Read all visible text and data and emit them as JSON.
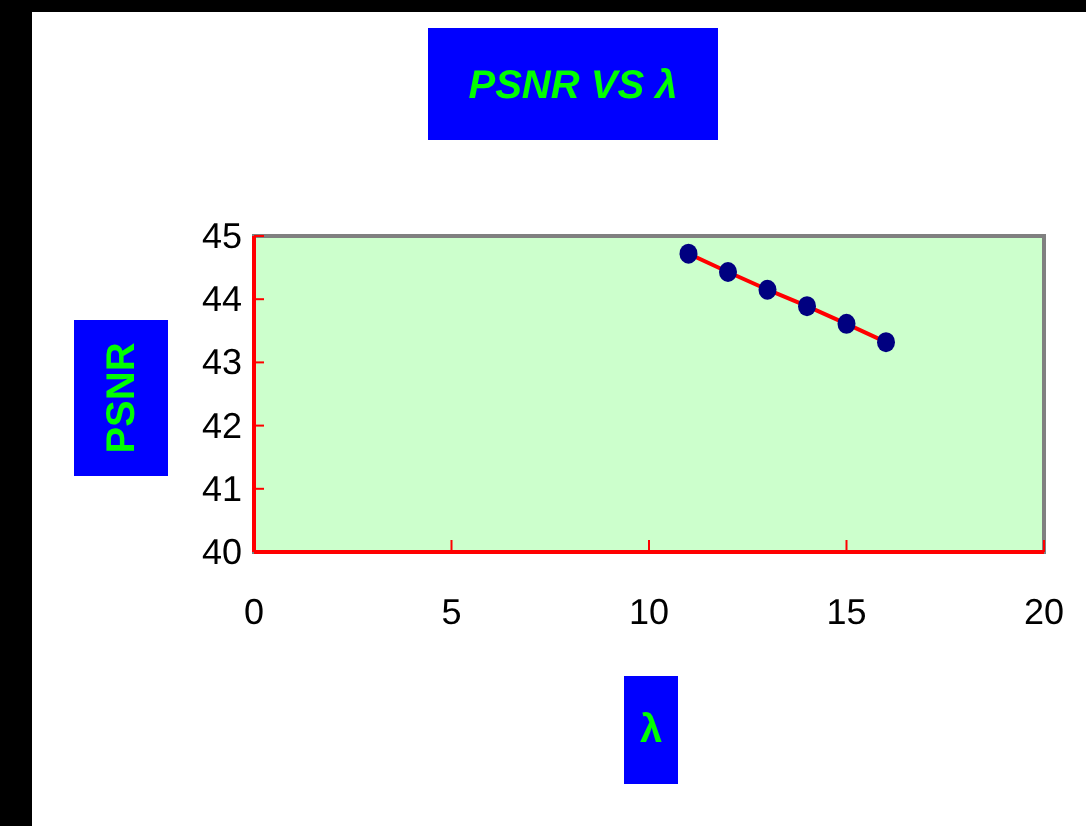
{
  "chart_data": {
    "type": "line",
    "title": "PSNR VS λ",
    "xlabel": "λ",
    "ylabel": "PSNR",
    "x": [
      11,
      12,
      13,
      14,
      15,
      16
    ],
    "series": [
      {
        "color": "#ff0000",
        "values": [
          44.72,
          44.43,
          44.15,
          43.89,
          43.61,
          43.32
        ]
      }
    ],
    "marker": "circle",
    "line_style": "solid",
    "xlim": [
      0,
      20
    ],
    "xticks": [
      0,
      5,
      10,
      15,
      20
    ],
    "ylim": [
      40,
      45
    ],
    "yticks": [
      40,
      41,
      42,
      43,
      44,
      45
    ],
    "grid": false
  }
}
